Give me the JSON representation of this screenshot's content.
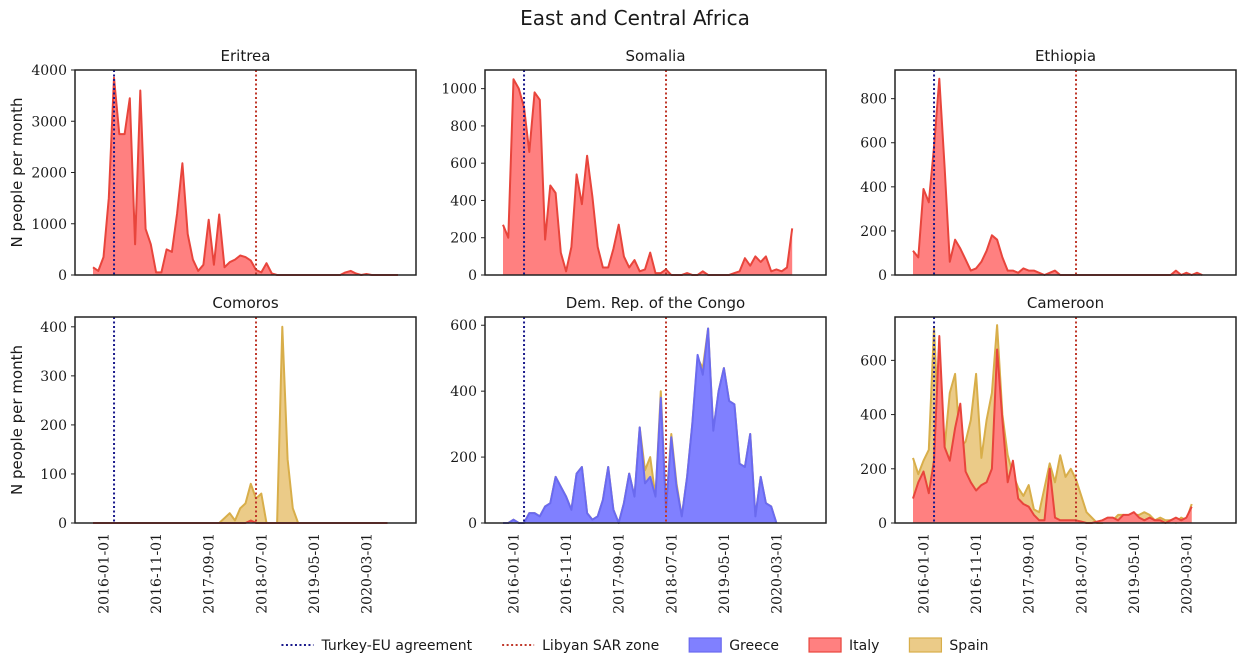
{
  "figure_title": "East and Central Africa",
  "ylabel": "N people per month",
  "legend": [
    {
      "label": "Turkey-EU agreement",
      "kind": "line",
      "color": "#1a1a8c"
    },
    {
      "label": "Libyan SAR zone",
      "kind": "line",
      "color": "#c0392b"
    },
    {
      "label": "Greece",
      "kind": "patch",
      "color": "#8080ff",
      "edge": "#6a6aef"
    },
    {
      "label": "Italy",
      "kind": "patch",
      "color": "#ff8080",
      "edge": "#e8453c"
    },
    {
      "label": "Spain",
      "kind": "patch",
      "color": "#ebcb88",
      "edge": "#d8ae4a"
    }
  ],
  "chart_data": [
    {
      "type": "area",
      "title": "Eritrea",
      "xlabel": "",
      "ylabel": "N people per month",
      "x_start": "2015-11",
      "x_end": "2020-09",
      "x_ticks": [
        "2016-01-01",
        "2016-11-01",
        "2017-09-01",
        "2018-07-01",
        "2019-05-01",
        "2020-03-01"
      ],
      "x_tick_labels_visible": false,
      "ylim": [
        0,
        4000
      ],
      "y_ticks": [
        0,
        1000,
        2000,
        3000,
        4000
      ],
      "events": [
        {
          "name": "Turkey-EU agreement",
          "date": "2016-03"
        },
        {
          "name": "Libyan SAR zone",
          "date": "2018-06"
        }
      ],
      "series": [
        {
          "name": "Italy",
          "start": "2015-11",
          "values": [
            150,
            80,
            350,
            1500,
            3850,
            2750,
            2750,
            3450,
            600,
            3600,
            900,
            600,
            50,
            50,
            500,
            450,
            1200,
            2180,
            800,
            300,
            80,
            200,
            1080,
            200,
            1180,
            150,
            250,
            300,
            380,
            350,
            280,
            100,
            50,
            230,
            30,
            0,
            0,
            0,
            0,
            0,
            0,
            0,
            0,
            0,
            0,
            0,
            0,
            0,
            50,
            80,
            30,
            0,
            20,
            0,
            0,
            0,
            0,
            0,
            0
          ]
        }
      ]
    },
    {
      "type": "area",
      "title": "Somalia",
      "xlabel": "",
      "ylabel": "",
      "x_start": "2015-11",
      "x_end": "2020-09",
      "x_ticks": [
        "2016-01-01",
        "2016-11-01",
        "2017-09-01",
        "2018-07-01",
        "2019-05-01",
        "2020-03-01"
      ],
      "x_tick_labels_visible": false,
      "ylim": [
        0,
        1100
      ],
      "y_ticks": [
        0,
        200,
        400,
        600,
        800,
        1000
      ],
      "events": [
        {
          "name": "Turkey-EU agreement",
          "date": "2016-03"
        },
        {
          "name": "Libyan SAR zone",
          "date": "2018-06"
        }
      ],
      "series": [
        {
          "name": "Italy",
          "start": "2015-11",
          "values": [
            270,
            200,
            1050,
            1000,
            900,
            660,
            980,
            940,
            190,
            480,
            440,
            120,
            20,
            150,
            540,
            380,
            640,
            420,
            150,
            40,
            40,
            140,
            270,
            100,
            40,
            80,
            20,
            30,
            120,
            10,
            10,
            30,
            0,
            0,
            0,
            10,
            0,
            0,
            20,
            0,
            0,
            0,
            0,
            0,
            10,
            20,
            90,
            50,
            100,
            70,
            100,
            20,
            30,
            20,
            40,
            250
          ]
        }
      ]
    },
    {
      "type": "area",
      "title": "Ethiopia",
      "xlabel": "",
      "ylabel": "",
      "x_start": "2015-11",
      "x_end": "2020-09",
      "x_ticks": [
        "2016-01-01",
        "2016-11-01",
        "2017-09-01",
        "2018-07-01",
        "2019-05-01",
        "2020-03-01"
      ],
      "x_tick_labels_visible": false,
      "ylim": [
        0,
        930
      ],
      "y_ticks": [
        0,
        200,
        400,
        600,
        800
      ],
      "events": [
        {
          "name": "Turkey-EU agreement",
          "date": "2016-03"
        },
        {
          "name": "Libyan SAR zone",
          "date": "2018-06"
        }
      ],
      "series": [
        {
          "name": "Italy",
          "start": "2015-11",
          "values": [
            110,
            80,
            390,
            330,
            580,
            890,
            490,
            60,
            160,
            120,
            70,
            20,
            30,
            60,
            110,
            180,
            160,
            80,
            20,
            20,
            10,
            30,
            20,
            20,
            10,
            0,
            10,
            20,
            0,
            0,
            0,
            0,
            0,
            0,
            0,
            0,
            0,
            0,
            0,
            0,
            0,
            0,
            0,
            0,
            0,
            0,
            0,
            0,
            0,
            0,
            20,
            0,
            10,
            0,
            10,
            0
          ]
        }
      ]
    },
    {
      "type": "area",
      "title": "Comoros",
      "xlabel": "",
      "ylabel": "N people per month",
      "x_start": "2015-11",
      "x_end": "2020-09",
      "x_ticks": [
        "2016-01-01",
        "2016-11-01",
        "2017-09-01",
        "2018-07-01",
        "2019-05-01",
        "2020-03-01"
      ],
      "x_tick_labels_visible": true,
      "ylim": [
        0,
        420
      ],
      "y_ticks": [
        0,
        100,
        200,
        300,
        400
      ],
      "events": [
        {
          "name": "Turkey-EU agreement",
          "date": "2016-03"
        },
        {
          "name": "Libyan SAR zone",
          "date": "2018-06"
        }
      ],
      "series": [
        {
          "name": "Spain",
          "start": "2015-11",
          "values": [
            0,
            0,
            0,
            0,
            0,
            0,
            0,
            0,
            0,
            0,
            0,
            0,
            0,
            0,
            0,
            0,
            0,
            0,
            0,
            0,
            0,
            0,
            0,
            0,
            0,
            10,
            20,
            5,
            30,
            40,
            80,
            50,
            60,
            0,
            0,
            0,
            400,
            130,
            30,
            0,
            0,
            0,
            0,
            0,
            0,
            0,
            0,
            0,
            0,
            0,
            0,
            0,
            0,
            0,
            0,
            0,
            0
          ]
        },
        {
          "name": "Italy",
          "start": "2015-11",
          "values": [
            0,
            0,
            0,
            0,
            0,
            0,
            0,
            0,
            0,
            0,
            0,
            0,
            0,
            0,
            0,
            0,
            0,
            0,
            0,
            0,
            0,
            0,
            0,
            0,
            0,
            0,
            0,
            0,
            0,
            0,
            5,
            0,
            0,
            0,
            0,
            0,
            0,
            0,
            0,
            0,
            0,
            0,
            0,
            0,
            0,
            0,
            0,
            0,
            0,
            0,
            0,
            0,
            0,
            0,
            0,
            0,
            0
          ]
        }
      ]
    },
    {
      "type": "area",
      "title": "Dem. Rep. of the Congo",
      "xlabel": "",
      "ylabel": "",
      "x_start": "2015-11",
      "x_end": "2020-09",
      "x_ticks": [
        "2016-01-01",
        "2016-11-01",
        "2017-09-01",
        "2018-07-01",
        "2019-05-01",
        "2020-03-01"
      ],
      "x_tick_labels_visible": true,
      "ylim": [
        0,
        625
      ],
      "y_ticks": [
        0,
        200,
        400,
        600
      ],
      "events": [
        {
          "name": "Turkey-EU agreement",
          "date": "2016-03"
        },
        {
          "name": "Libyan SAR zone",
          "date": "2018-06"
        }
      ],
      "series": [
        {
          "name": "Spain",
          "start": "2015-11",
          "values": [
            0,
            0,
            10,
            0,
            0,
            30,
            30,
            20,
            50,
            60,
            140,
            110,
            80,
            40,
            150,
            170,
            30,
            10,
            20,
            70,
            170,
            40,
            0,
            60,
            150,
            80,
            290,
            160,
            200,
            80,
            400,
            50,
            270,
            120,
            20,
            140,
            300,
            500,
            470,
            590,
            280,
            400,
            470,
            370,
            360,
            180,
            170,
            270,
            20,
            140,
            60,
            50,
            0
          ]
        },
        {
          "name": "Greece",
          "start": "2015-11",
          "values": [
            0,
            0,
            10,
            0,
            0,
            30,
            30,
            20,
            50,
            60,
            140,
            110,
            80,
            40,
            150,
            170,
            30,
            10,
            20,
            70,
            170,
            40,
            0,
            60,
            150,
            80,
            290,
            120,
            140,
            80,
            380,
            40,
            260,
            110,
            20,
            140,
            300,
            510,
            450,
            590,
            280,
            400,
            470,
            370,
            360,
            180,
            170,
            270,
            20,
            140,
            60,
            50,
            0
          ]
        }
      ]
    },
    {
      "type": "area",
      "title": "Cameroon",
      "xlabel": "",
      "ylabel": "",
      "x_start": "2015-11",
      "x_end": "2020-09",
      "x_ticks": [
        "2016-01-01",
        "2016-11-01",
        "2017-09-01",
        "2018-07-01",
        "2019-05-01",
        "2020-03-01"
      ],
      "x_tick_labels_visible": true,
      "ylim": [
        0,
        760
      ],
      "y_ticks": [
        0,
        200,
        400,
        600
      ],
      "events": [
        {
          "name": "Turkey-EU agreement",
          "date": "2016-03"
        },
        {
          "name": "Libyan SAR zone",
          "date": "2018-06"
        }
      ],
      "series": [
        {
          "name": "Spain",
          "start": "2015-11",
          "values": [
            240,
            180,
            230,
            270,
            720,
            300,
            280,
            480,
            550,
            280,
            300,
            380,
            550,
            240,
            380,
            480,
            730,
            400,
            250,
            180,
            130,
            100,
            140,
            50,
            40,
            130,
            220,
            150,
            250,
            170,
            200,
            160,
            100,
            40,
            20,
            0,
            0,
            10,
            10,
            30,
            30,
            10,
            30,
            30,
            40,
            30,
            10,
            20,
            10,
            10,
            0,
            20,
            10,
            70
          ]
        },
        {
          "name": "Italy",
          "start": "2015-11",
          "values": [
            90,
            150,
            190,
            110,
            230,
            690,
            280,
            230,
            350,
            440,
            190,
            150,
            120,
            140,
            150,
            200,
            640,
            380,
            150,
            230,
            90,
            70,
            60,
            30,
            10,
            10,
            200,
            20,
            10,
            10,
            10,
            10,
            5,
            0,
            0,
            5,
            10,
            20,
            20,
            10,
            30,
            30,
            40,
            20,
            10,
            20,
            10,
            10,
            0,
            10,
            20,
            10,
            20,
            60
          ]
        }
      ]
    }
  ]
}
